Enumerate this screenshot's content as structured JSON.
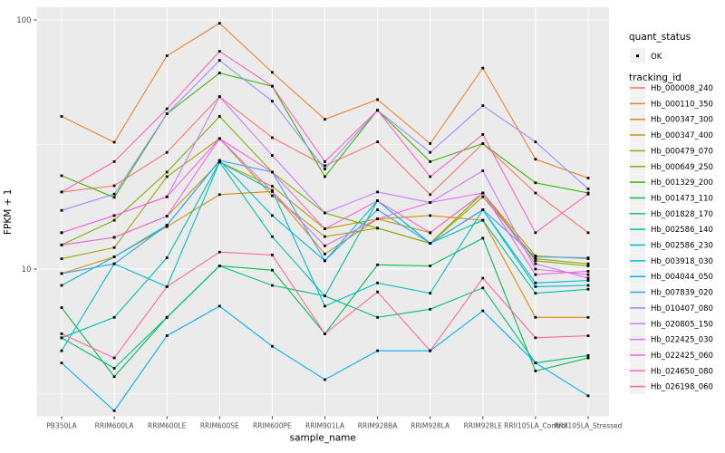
{
  "chart_data": {
    "type": "line",
    "title": "",
    "xlabel": "sample_name",
    "ylabel": "FPKM + 1",
    "y_scale": "log10",
    "y_tick_labels": [
      "100",
      "10"
    ],
    "y_ticks": [
      100,
      10
    ],
    "y_minor_ticks": [
      31.623,
      3.162
    ],
    "ylim": [
      2.57,
      112
    ],
    "grid": true,
    "legend_position": "right",
    "panel_bg": "#EBEBEB",
    "grid_color": "#FFFFFF",
    "axis_text_color": "#4D4D4D",
    "point_color": "#000000",
    "legend_key_bg": "#F2F2F2",
    "categories": [
      "PB350LA",
      "RRIM600LA",
      "RRIM600LE",
      "RRIM600SE",
      "RRIM600PE",
      "RRIM901LA",
      "RRIM928BA",
      "RRIM928LA",
      "RRIM928LE",
      "RRII105LA_Control",
      "RRII105LA_Stressed"
    ],
    "legend": {
      "quant_title": "quant_status",
      "quant_items": [
        {
          "label": "OK"
        }
      ],
      "series_title": "tracking_id"
    },
    "series": [
      {
        "name": "Hb_000008_240",
        "color": "#F8766D",
        "values": [
          20.4,
          21.6,
          29.4,
          49.2,
          33.7,
          26.0,
          32.4,
          19.9,
          31.9,
          20.2,
          14.0
        ]
      },
      {
        "name": "Hb_000110_350",
        "color": "#EA8331",
        "values": [
          41.0,
          32.3,
          71.8,
          97.0,
          61.6,
          39.9,
          47.9,
          31.9,
          64.1,
          27.6,
          23.2
        ]
      },
      {
        "name": "Hb_000347_300",
        "color": "#D89000",
        "values": [
          9.6,
          11.2,
          14.8,
          19.9,
          20.5,
          11.5,
          15.9,
          16.4,
          15.7,
          6.4,
          6.4
        ]
      },
      {
        "name": "Hb_000347_400",
        "color": "#C09B00",
        "values": [
          12.5,
          13.4,
          16.3,
          26.9,
          21.5,
          14.5,
          15.9,
          14.0,
          20.2,
          11.3,
          11.0
        ]
      },
      {
        "name": "Hb_000479_070",
        "color": "#A3A500",
        "values": [
          11.0,
          12.2,
          23.5,
          33.4,
          19.7,
          13.5,
          14.6,
          12.7,
          19.5,
          11.0,
          10.5
        ]
      },
      {
        "name": "Hb_000649_250",
        "color": "#7CAE00",
        "values": [
          12.5,
          15.7,
          24.5,
          41.0,
          24.5,
          16.8,
          14.6,
          12.7,
          20.2,
          10.8,
          10.3
        ]
      },
      {
        "name": "Hb_001329_200",
        "color": "#39B600",
        "values": [
          23.7,
          19.4,
          42.0,
          61.2,
          54.2,
          23.5,
          43.4,
          27.0,
          31.9,
          22.2,
          20.2
        ]
      },
      {
        "name": "Hb_001473_110",
        "color": "#00BB4E",
        "values": [
          7.0,
          3.7,
          6.4,
          10.3,
          9.9,
          5.5,
          10.4,
          10.3,
          13.3,
          3.9,
          4.4
        ]
      },
      {
        "name": "Hb_001828_170",
        "color": "#00BF7D",
        "values": [
          5.3,
          4.0,
          6.4,
          10.3,
          8.6,
          7.8,
          6.4,
          6.9,
          8.4,
          4.2,
          4.5
        ]
      },
      {
        "name": "Hb_002586_140",
        "color": "#00C1A3",
        "values": [
          5.3,
          6.4,
          11.1,
          26.9,
          13.5,
          7.8,
          18.8,
          12.7,
          15.7,
          8.0,
          8.3
        ]
      },
      {
        "name": "Hb_002586_230",
        "color": "#00BFC4",
        "values": [
          4.7,
          10.5,
          8.5,
          26.9,
          20.7,
          7.1,
          8.8,
          8.0,
          17.3,
          8.5,
          8.6
        ]
      },
      {
        "name": "Hb_003918_030",
        "color": "#00BBDA",
        "values": [
          8.6,
          11.2,
          15.0,
          27.3,
          16.4,
          10.8,
          18.8,
          12.7,
          17.3,
          8.8,
          9.0
        ]
      },
      {
        "name": "Hb_004044_050",
        "color": "#00B0F6",
        "values": [
          4.2,
          2.7,
          5.4,
          7.1,
          4.9,
          3.6,
          4.7,
          4.7,
          6.8,
          4.2,
          3.1
        ]
      },
      {
        "name": "Hb_007839_020",
        "color": "#35A2FF",
        "values": [
          9.6,
          10.5,
          15.0,
          27.3,
          24.5,
          10.8,
          17.3,
          12.7,
          17.3,
          11.2,
          11.1
        ]
      },
      {
        "name": "Hb_010407_080",
        "color": "#9590FF",
        "values": [
          17.2,
          20.0,
          42.0,
          68.8,
          47.2,
          25.2,
          43.4,
          29.4,
          45.3,
          32.4,
          21.0
        ]
      },
      {
        "name": "Hb_020805_150",
        "color": "#C77CFF",
        "values": [
          14.0,
          16.4,
          19.5,
          49.2,
          28.6,
          16.8,
          20.4,
          18.5,
          24.8,
          10.0,
          9.5
        ]
      },
      {
        "name": "Hb_022425_030",
        "color": "#E76BF3",
        "values": [
          12.5,
          13.4,
          16.3,
          33.4,
          20.5,
          12.4,
          15.9,
          18.5,
          20.2,
          10.5,
          9.2
        ]
      },
      {
        "name": "Hb_022425_060",
        "color": "#FA62DB",
        "values": [
          14.0,
          16.4,
          19.5,
          33.4,
          24.5,
          14.5,
          18.8,
          14.0,
          20.2,
          9.5,
          9.8
        ]
      },
      {
        "name": "Hb_024650_080",
        "color": "#FF62BC",
        "values": [
          20.4,
          27.0,
          44.0,
          74.8,
          54.2,
          27.0,
          43.4,
          23.5,
          34.7,
          14.0,
          20.0
        ]
      },
      {
        "name": "Hb_026198_060",
        "color": "#FF6A98",
        "values": [
          5.5,
          4.4,
          8.5,
          11.7,
          11.4,
          5.5,
          8.1,
          4.7,
          9.2,
          5.3,
          5.4
        ]
      }
    ]
  }
}
